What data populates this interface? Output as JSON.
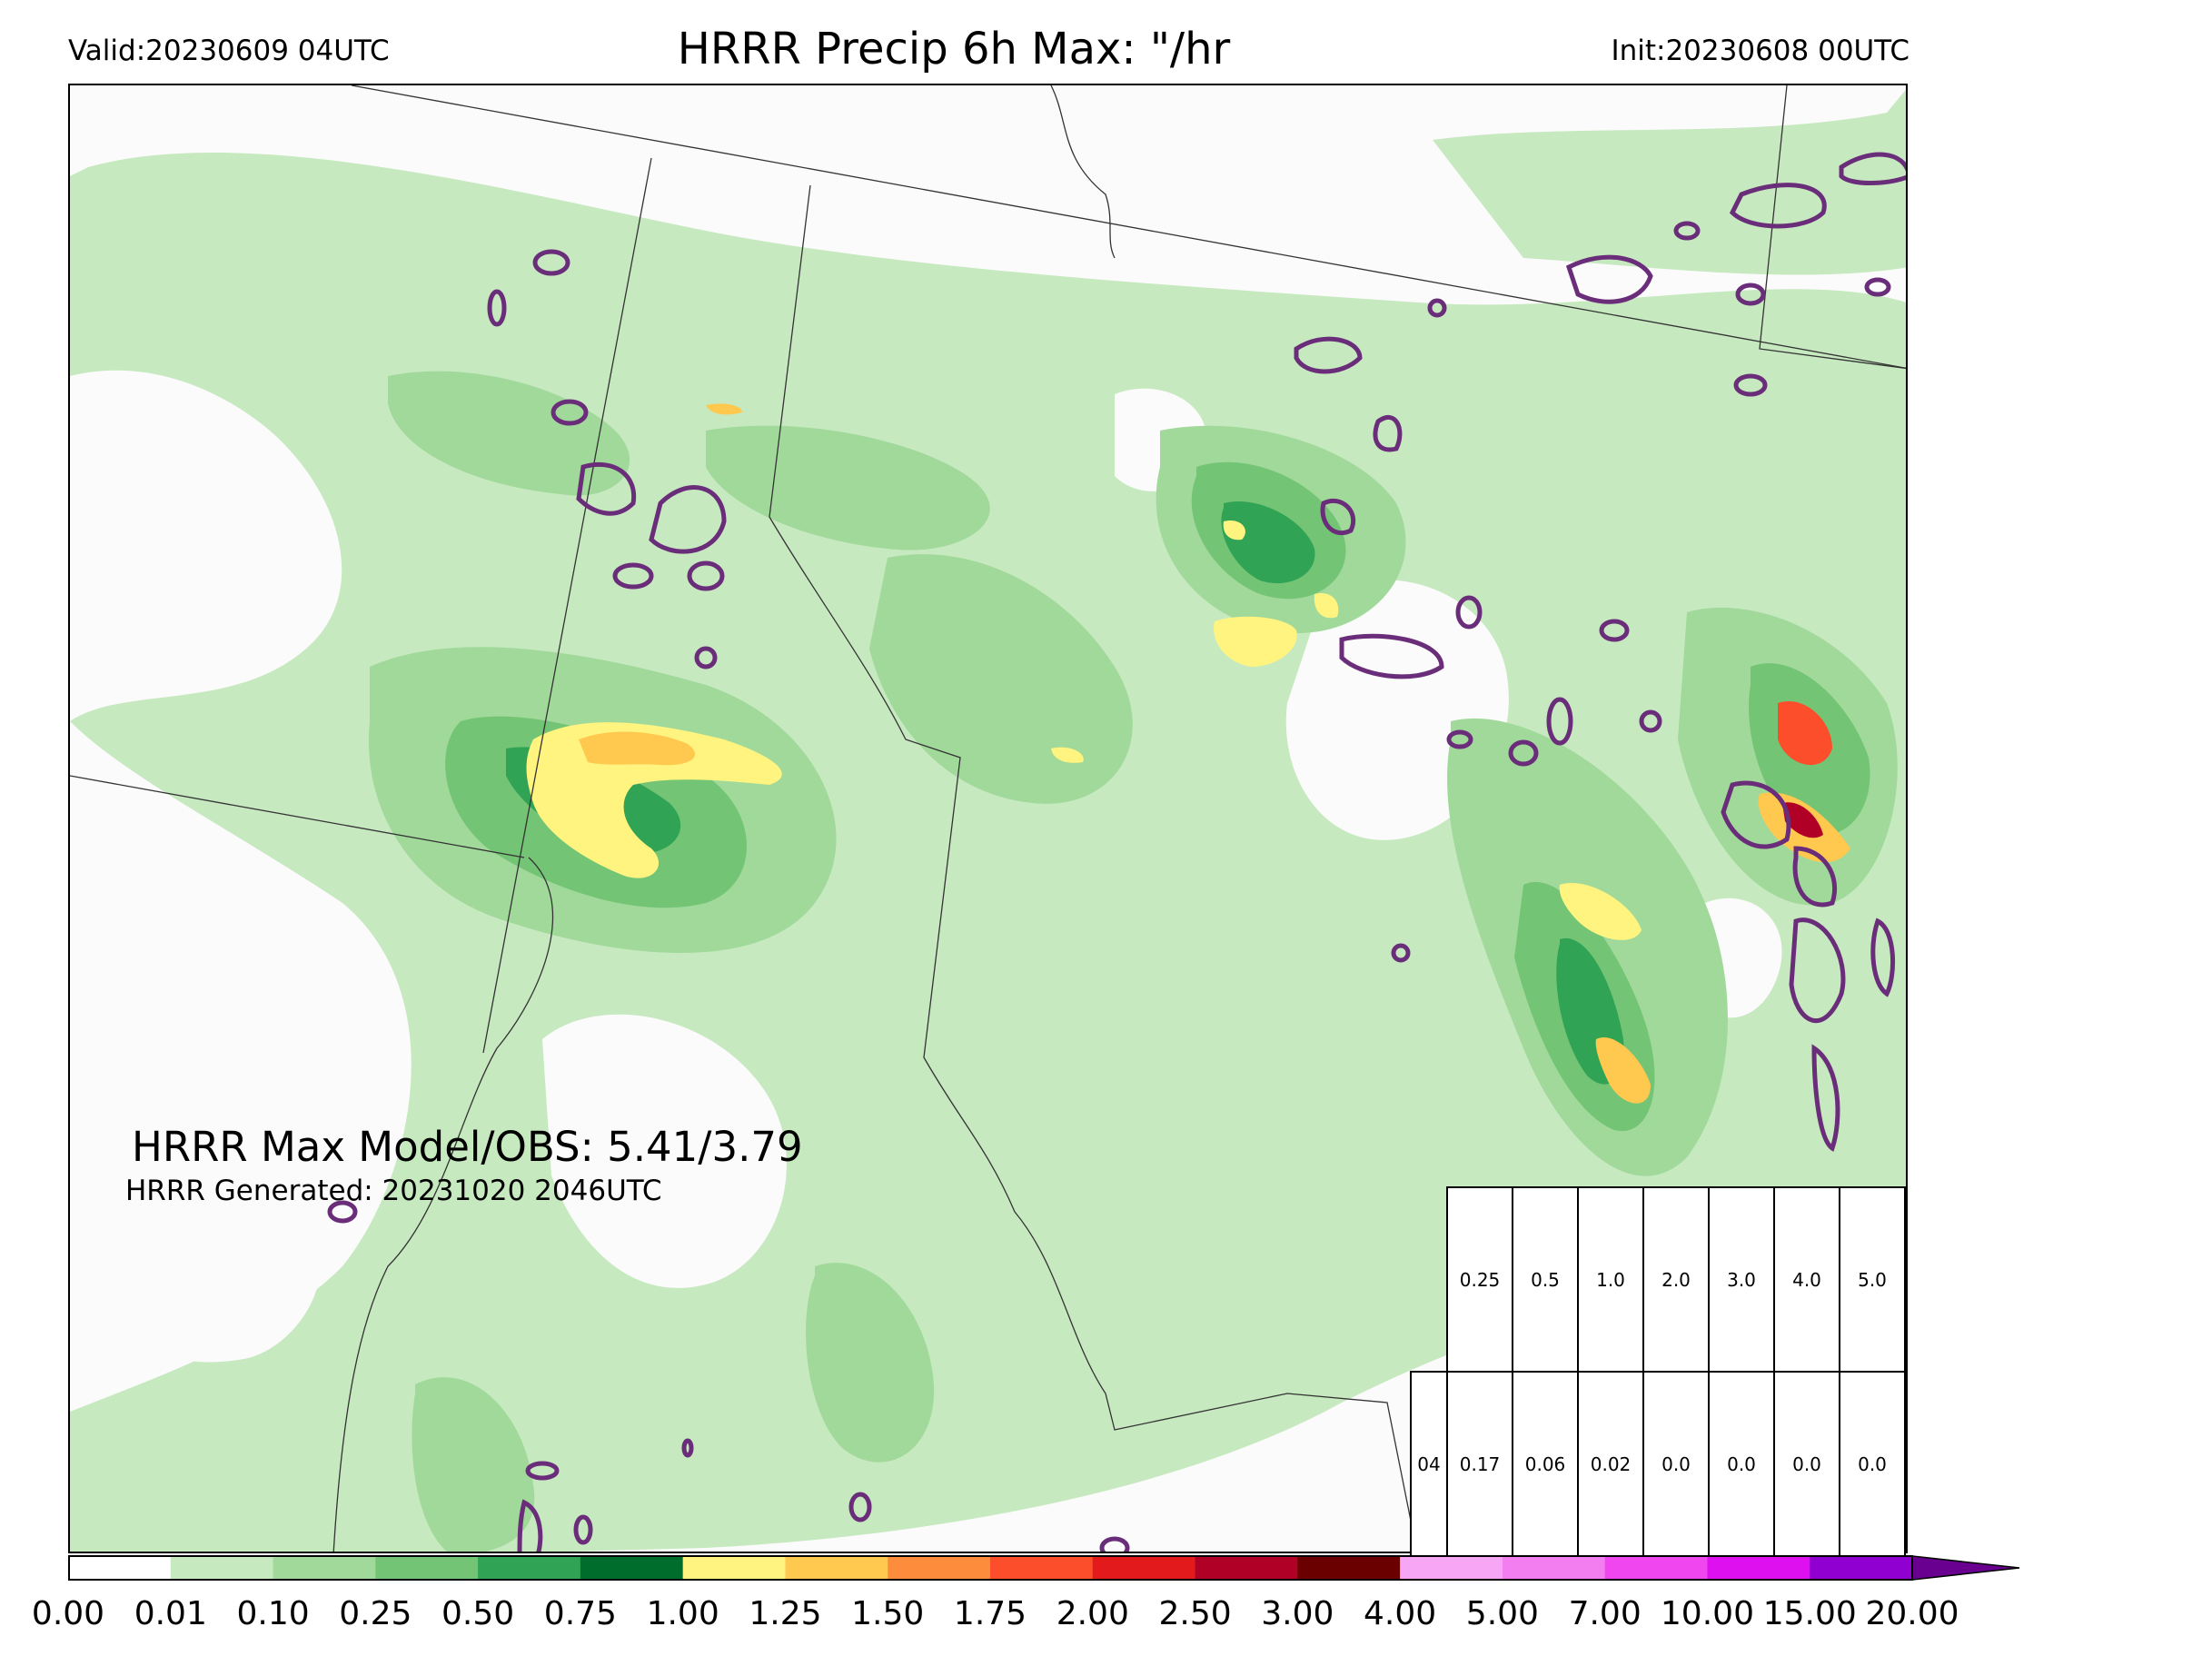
{
  "header": {
    "valid": "Valid:20230609 04UTC",
    "title": "HRRR Precip 6h Max: \"/hr",
    "init": "Init:20230608 00UTC"
  },
  "annotations": {
    "max_model_obs": "HRRR Max Model/OBS: 5.41/3.79",
    "generated": "HRRR Generated: 20231020 2046UTC"
  },
  "threshold_table": {
    "thresholds": [
      "0.25",
      "0.5",
      "1.0",
      "2.0",
      "3.0",
      "4.0",
      "5.0"
    ],
    "row_label": "04",
    "values": [
      "0.17",
      "0.06",
      "0.02",
      "0.0",
      "0.0",
      "0.0",
      "0.0"
    ]
  },
  "colorbar": {
    "ticks": [
      "0.00",
      "0.01",
      "0.10",
      "0.25",
      "0.50",
      "0.75",
      "1.00",
      "1.25",
      "1.50",
      "1.75",
      "2.00",
      "2.50",
      "3.00",
      "4.00",
      "5.00",
      "7.00",
      "10.00",
      "15.00",
      "20.00"
    ],
    "colors": [
      "#ffffff",
      "#c7e9c0",
      "#a1d99b",
      "#74c476",
      "#31a354",
      "#006d2c",
      "#fff47f",
      "#ffc84f",
      "#fd8d3c",
      "#fc4e2a",
      "#e31a1c",
      "#b10026",
      "#6b0000",
      "#f7a6f5",
      "#f27ef0",
      "#f046f0",
      "#de10f0",
      "#9000d0"
    ],
    "extend_color": "#6a0090"
  },
  "legend_colors": {
    "obs_contour": "#6a2d7a",
    "state_border": "#333333"
  }
}
